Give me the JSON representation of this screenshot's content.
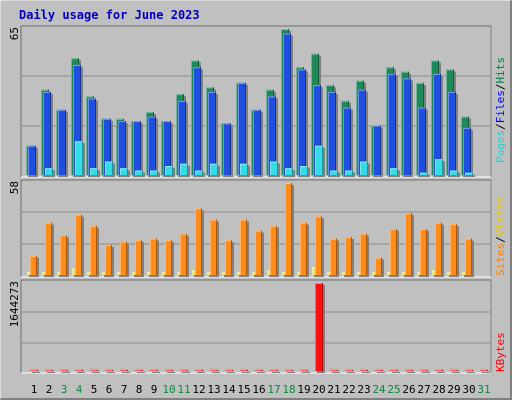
{
  "title": "Daily usage for June 2023",
  "colors": {
    "hits": "#1e8a5a",
    "files": "#1f4fe0",
    "pages": "#33dde8",
    "visits": "#f0e070",
    "sites": "#ff8c1a",
    "kbytes": "#ff1010",
    "weekend": "#0b8a3e",
    "weekday": "#000000",
    "vtitle_pages": "#33cccc",
    "vtitle_files": "#0000ff",
    "vtitle_hits": "#008040",
    "vtitle_sites": "#ff8000",
    "vtitle_visits": "#e6c800",
    "vtitle_kbytes": "#ff0000",
    "slash": "#000000"
  },
  "legend_right": {
    "top": [
      "Pages",
      "/",
      "Files",
      "/",
      "Hits"
    ],
    "middle": [
      "Sites",
      "/",
      "Visits"
    ],
    "bottom": [
      "KBytes"
    ]
  },
  "y_max_labels": {
    "top": "65",
    "middle": "58",
    "bottom": "1644273"
  },
  "chart_data": {
    "type": "bar",
    "title": "Daily usage for June 2023",
    "categories": [
      "1",
      "2",
      "3",
      "4",
      "5",
      "6",
      "7",
      "8",
      "9",
      "10",
      "11",
      "12",
      "13",
      "14",
      "15",
      "16",
      "17",
      "18",
      "19",
      "20",
      "21",
      "22",
      "23",
      "24",
      "25",
      "26",
      "27",
      "28",
      "29",
      "30",
      "31"
    ],
    "weekend_days": [
      3,
      4,
      10,
      11,
      17,
      18,
      24,
      25,
      31
    ],
    "panels": [
      {
        "name": "hits-files-pages",
        "ylim": [
          0,
          65
        ],
        "series": [
          {
            "name": "Hits",
            "values": [
              13,
              38,
              29,
              52,
              35,
              25,
              25,
              24,
              28,
              24,
              36,
              51,
              39,
              23,
              41,
              29,
              38,
              65,
              48,
              54,
              40,
              33,
              42,
              22,
              48,
              46,
              41,
              51,
              47,
              26,
              0
            ]
          },
          {
            "name": "Files",
            "values": [
              13,
              37,
              29,
              49,
              34,
              25,
              24,
              24,
              26,
              24,
              33,
              48,
              37,
              23,
              41,
              29,
              35,
              63,
              47,
              40,
              37,
              30,
              38,
              22,
              45,
              43,
              30,
              45,
              37,
              21,
              0
            ]
          },
          {
            "name": "Pages",
            "values": [
              0,
              3,
              0,
              15,
              3,
              6,
              3,
              2,
              2,
              4,
              5,
              2,
              5,
              0,
              5,
              0,
              6,
              3,
              4,
              13,
              2,
              2,
              6,
              0,
              3,
              0,
              1,
              7,
              2,
              1,
              0
            ]
          }
        ]
      },
      {
        "name": "sites-visits",
        "ylim": [
          0,
          58
        ],
        "series": [
          {
            "name": "Sites",
            "values": [
              12,
              33,
              25,
              38,
              31,
              19,
              21,
              22,
              23,
              22,
              26,
              42,
              35,
              22,
              35,
              28,
              31,
              58,
              33,
              37,
              23,
              24,
              26,
              11,
              29,
              39,
              29,
              33,
              32,
              23,
              0
            ]
          },
          {
            "name": "Visits",
            "values": [
              2,
              2,
              2,
              4,
              2,
              2,
              2,
              2,
              2,
              2,
              2,
              3,
              2,
              2,
              2,
              2,
              3,
              2,
              2,
              5,
              2,
              2,
              2,
              2,
              2,
              2,
              2,
              3,
              2,
              2,
              0
            ]
          }
        ]
      },
      {
        "name": "kbytes",
        "ylim": [
          0,
          1644273
        ],
        "series": [
          {
            "name": "KBytes",
            "values": [
              2000,
              2000,
              2000,
              2000,
              2000,
              2000,
              2000,
              2000,
              2000,
              2000,
              2000,
              2000,
              2000,
              2000,
              2000,
              2000,
              2000,
              2000,
              2000,
              1644273,
              2000,
              2000,
              2000,
              2000,
              2000,
              2000,
              2000,
              2000,
              2000,
              2000,
              2000
            ]
          }
        ]
      }
    ]
  }
}
